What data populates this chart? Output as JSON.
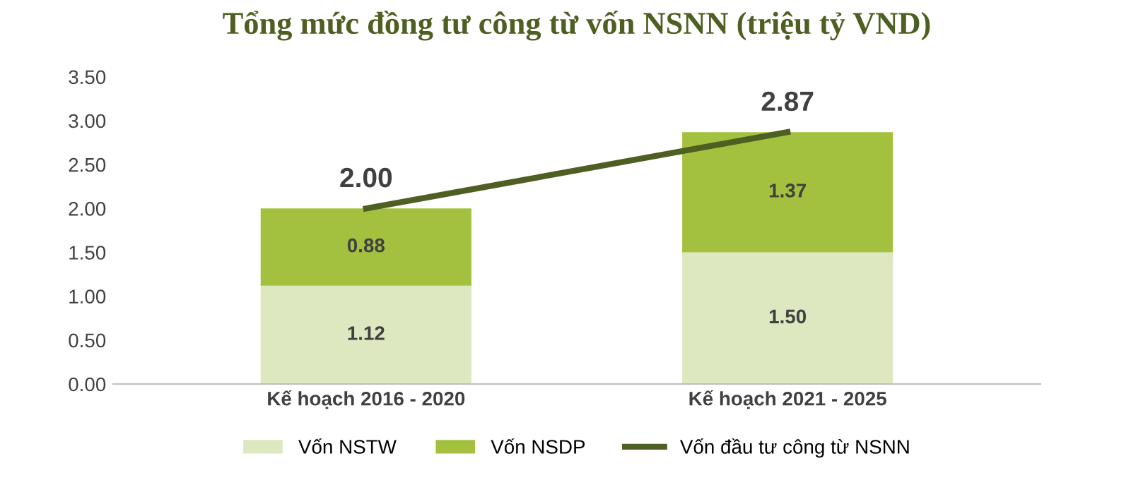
{
  "chart_data": {
    "type": "bar",
    "stacked": true,
    "title": "Tổng mức đồng tư công từ vốn NSNN (triệu tỷ VND)",
    "categories": [
      "Kế hoạch 2016 - 2020",
      "Kế hoạch 2021 - 2025"
    ],
    "series": [
      {
        "name": "Vốn NSTW",
        "color": "#dde7c0",
        "values": [
          1.12,
          1.5
        ],
        "value_labels": [
          "1.12",
          "1.50"
        ]
      },
      {
        "name": "Vốn NSDP",
        "color": "#a4c03f",
        "values": [
          0.88,
          1.37
        ],
        "value_labels": [
          "0.88",
          "1.37"
        ]
      },
      {
        "name": "Vốn đầu tư công từ NSNN",
        "type": "line",
        "color": "#4e5f22",
        "values": [
          2.0,
          2.87
        ],
        "value_labels": [
          "2.00",
          "2.87"
        ]
      }
    ],
    "ylim": [
      0,
      3.5
    ],
    "yticks": [
      {
        "value": 0,
        "label": "0.00"
      },
      {
        "value": 0.5,
        "label": "0.50"
      },
      {
        "value": 1,
        "label": "1.00"
      },
      {
        "value": 1.5,
        "label": "1.50"
      },
      {
        "value": 2,
        "label": "2.00"
      },
      {
        "value": 2.5,
        "label": "2.50"
      },
      {
        "value": 3,
        "label": "3.00"
      },
      {
        "value": 3.5,
        "label": "3.50"
      }
    ],
    "grid": false,
    "legend": "bottom",
    "marker": "none",
    "line_style": "solid"
  }
}
